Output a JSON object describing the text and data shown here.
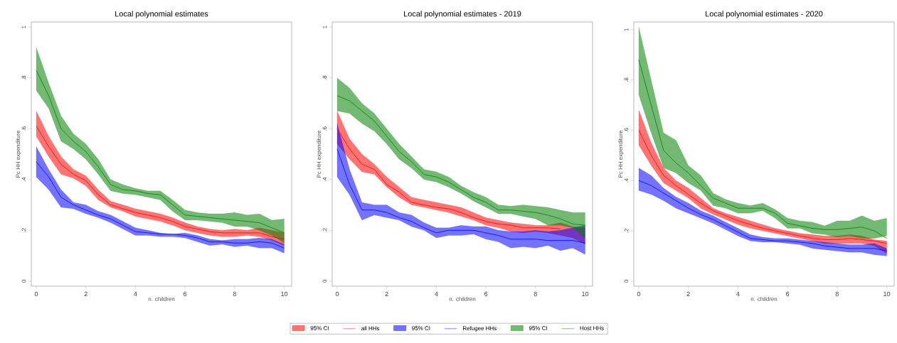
{
  "chart_data": [
    {
      "type": "line",
      "title": "Local polynomial estimates",
      "xlabel": "n. children",
      "ylabel": "Pc HH expenditure",
      "x": [
        0,
        0.5,
        1,
        1.5,
        2,
        2.5,
        3,
        3.5,
        4,
        4.5,
        5,
        5.5,
        6,
        6.5,
        7,
        7.5,
        8,
        8.5,
        9,
        9.5,
        10
      ],
      "xlim": [
        -0.2,
        10.3
      ],
      "ylim": [
        -0.02,
        1.02
      ],
      "xticks": [
        0,
        2,
        4,
        6,
        8,
        10
      ],
      "yticks": [
        0,
        {
          "value": 0.2,
          "label": ".2"
        },
        {
          "value": 0.4,
          "label": ".4"
        },
        {
          "value": 0.6,
          "label": ".6"
        },
        {
          "value": 0.8,
          "label": ".8"
        },
        1
      ],
      "legend": "bottom",
      "annotations": [
        "95% CI",
        "95% CI",
        "95% CI"
      ],
      "series": [
        {
          "name": "all HHs",
          "color": "#ff0000",
          "values": [
            0.61,
            0.53,
            0.46,
            0.42,
            0.395,
            0.34,
            0.3,
            0.285,
            0.27,
            0.26,
            0.25,
            0.235,
            0.215,
            0.205,
            0.195,
            0.19,
            0.19,
            0.19,
            0.19,
            0.175,
            0.165
          ],
          "upper": [
            0.67,
            0.57,
            0.49,
            0.44,
            0.415,
            0.36,
            0.315,
            0.3,
            0.285,
            0.275,
            0.265,
            0.25,
            0.23,
            0.215,
            0.205,
            0.2,
            0.205,
            0.2,
            0.21,
            0.2,
            0.19
          ],
          "lower": [
            0.57,
            0.49,
            0.42,
            0.405,
            0.375,
            0.32,
            0.29,
            0.275,
            0.255,
            0.245,
            0.235,
            0.22,
            0.2,
            0.19,
            0.18,
            0.175,
            0.175,
            0.18,
            0.175,
            0.16,
            0.14
          ]
        },
        {
          "name": "Refugee HHs",
          "color": "#0000ff",
          "values": [
            0.47,
            0.41,
            0.33,
            0.3,
            0.28,
            0.26,
            0.245,
            0.22,
            0.195,
            0.19,
            0.185,
            0.185,
            0.18,
            0.17,
            0.155,
            0.155,
            0.15,
            0.15,
            0.155,
            0.15,
            0.13
          ],
          "upper": [
            0.53,
            0.44,
            0.36,
            0.31,
            0.3,
            0.275,
            0.26,
            0.235,
            0.21,
            0.2,
            0.19,
            0.185,
            0.19,
            0.18,
            0.165,
            0.16,
            0.165,
            0.165,
            0.17,
            0.165,
            0.145
          ],
          "lower": [
            0.41,
            0.36,
            0.29,
            0.285,
            0.265,
            0.25,
            0.23,
            0.205,
            0.18,
            0.18,
            0.175,
            0.175,
            0.17,
            0.155,
            0.14,
            0.145,
            0.135,
            0.14,
            0.13,
            0.13,
            0.11
          ]
        },
        {
          "name": "Host HHs",
          "color": "#008000",
          "values": [
            0.83,
            0.73,
            0.6,
            0.55,
            0.51,
            0.45,
            0.38,
            0.36,
            0.355,
            0.345,
            0.34,
            0.3,
            0.26,
            0.255,
            0.25,
            0.245,
            0.24,
            0.235,
            0.23,
            0.21,
            0.19
          ],
          "upper": [
            0.92,
            0.78,
            0.65,
            0.58,
            0.54,
            0.48,
            0.4,
            0.38,
            0.365,
            0.355,
            0.355,
            0.32,
            0.28,
            0.27,
            0.265,
            0.265,
            0.27,
            0.26,
            0.265,
            0.24,
            0.245
          ],
          "lower": [
            0.75,
            0.68,
            0.55,
            0.52,
            0.48,
            0.42,
            0.355,
            0.345,
            0.34,
            0.33,
            0.32,
            0.275,
            0.24,
            0.24,
            0.235,
            0.23,
            0.215,
            0.215,
            0.2,
            0.18,
            0.15
          ]
        }
      ]
    },
    {
      "type": "line",
      "title": "Local polynomial estimates - 2019",
      "xlabel": "n. children",
      "ylabel": "Pc HH expenditure",
      "x": [
        0,
        0.5,
        1,
        1.5,
        2,
        2.5,
        3,
        3.5,
        4,
        4.5,
        5,
        5.5,
        6,
        6.5,
        7,
        7.5,
        8,
        8.5,
        9,
        9.5,
        10
      ],
      "xlim": [
        -0.2,
        10.3
      ],
      "ylim": [
        -0.02,
        1.02
      ],
      "xticks": [
        0,
        2,
        4,
        6,
        8,
        10
      ],
      "yticks": [
        0,
        {
          "value": 0.2,
          "label": ".2"
        },
        {
          "value": 0.4,
          "label": ".4"
        },
        {
          "value": 0.6,
          "label": ".6"
        },
        {
          "value": 0.8,
          "label": ".8"
        },
        1
      ],
      "series": [
        {
          "color": "#ff0000",
          "values": [
            0.6,
            0.52,
            0.46,
            0.44,
            0.38,
            0.35,
            0.31,
            0.3,
            0.29,
            0.285,
            0.27,
            0.25,
            0.235,
            0.225,
            0.22,
            0.21,
            0.21,
            0.21,
            0.205,
            null,
            null
          ],
          "upper": [
            0.67,
            0.56,
            0.5,
            0.46,
            0.41,
            0.37,
            0.33,
            0.32,
            0.31,
            0.3,
            0.29,
            0.27,
            0.25,
            0.24,
            0.23,
            0.225,
            0.22,
            0.22,
            0.23,
            0.215,
            0.21
          ],
          "lower": [
            0.54,
            0.48,
            0.43,
            0.42,
            0.37,
            0.33,
            0.3,
            0.29,
            0.28,
            0.27,
            0.255,
            0.24,
            0.22,
            0.21,
            0.195,
            0.19,
            0.195,
            0.19,
            0.18,
            0.17,
            0.145
          ]
        },
        {
          "color": "#0000ff",
          "values": [
            0.52,
            0.38,
            0.28,
            0.28,
            0.27,
            0.25,
            0.235,
            0.21,
            0.19,
            0.2,
            0.2,
            0.2,
            0.19,
            0.18,
            0.165,
            0.165,
            0.165,
            0.16,
            0.16,
            0.16,
            0.15
          ],
          "upper": [
            0.62,
            0.44,
            0.31,
            0.3,
            0.3,
            0.27,
            0.26,
            0.23,
            0.21,
            0.21,
            0.22,
            0.215,
            0.215,
            0.2,
            0.195,
            0.195,
            0.2,
            0.195,
            0.2,
            0.21,
            0.22
          ],
          "lower": [
            0.41,
            0.34,
            0.24,
            0.26,
            0.25,
            0.24,
            0.215,
            0.2,
            0.17,
            0.18,
            0.18,
            0.185,
            0.165,
            0.155,
            0.13,
            0.135,
            0.13,
            0.14,
            0.12,
            0.13,
            0.105
          ]
        },
        {
          "color": "#008000",
          "values": [
            0.73,
            0.71,
            0.67,
            0.63,
            0.57,
            0.51,
            0.47,
            0.42,
            0.41,
            0.39,
            0.36,
            0.33,
            0.31,
            0.28,
            0.28,
            0.275,
            0.27,
            0.26,
            0.245,
            0.225,
            0.22
          ],
          "upper": [
            0.8,
            0.76,
            0.7,
            0.66,
            0.6,
            0.54,
            0.49,
            0.44,
            0.43,
            0.41,
            0.375,
            0.35,
            0.33,
            0.3,
            0.295,
            0.3,
            0.295,
            0.29,
            0.28,
            0.27,
            0.27
          ],
          "lower": [
            0.67,
            0.66,
            0.62,
            0.59,
            0.54,
            0.48,
            0.445,
            0.4,
            0.39,
            0.37,
            0.345,
            0.315,
            0.29,
            0.265,
            0.265,
            0.255,
            0.245,
            0.22,
            0.22,
            0.21,
            0.17
          ]
        }
      ]
    },
    {
      "type": "line",
      "title": "Local polynomial estimates - 2020",
      "xlabel": "n. children",
      "ylabel": "Pc HH expenditure",
      "x": [
        0,
        0.5,
        1,
        1.5,
        2,
        2.5,
        3,
        3.5,
        4,
        4.5,
        5,
        5.5,
        6,
        6.5,
        7,
        7.5,
        8,
        8.5,
        9,
        9.5,
        10
      ],
      "xlim": [
        -0.2,
        10.3
      ],
      "ylim": [
        -0.02,
        1.03
      ],
      "xticks": [
        0,
        2,
        4,
        6,
        8,
        10
      ],
      "yticks": [
        0,
        {
          "value": 0.2,
          "label": ".2"
        },
        {
          "value": 0.4,
          "label": ".4"
        },
        {
          "value": 0.6,
          "label": ".6"
        },
        {
          "value": 0.8,
          "label": ".8"
        },
        1
      ],
      "series": [
        {
          "color": "#ff0000",
          "values": [
            0.6,
            0.5,
            0.42,
            0.38,
            0.345,
            0.31,
            0.28,
            0.26,
            0.24,
            0.225,
            0.21,
            0.2,
            0.19,
            0.18,
            0.17,
            0.165,
            0.165,
            0.17,
            0.165,
            0.16,
            0.15
          ],
          "upper": [
            0.68,
            0.55,
            0.45,
            0.4,
            0.37,
            0.33,
            0.29,
            0.27,
            0.255,
            0.24,
            0.225,
            0.21,
            0.2,
            0.19,
            0.185,
            0.18,
            0.18,
            0.185,
            0.18,
            0.165,
            0.16
          ],
          "lower": [
            0.54,
            0.46,
            0.39,
            0.36,
            0.33,
            0.29,
            0.265,
            0.245,
            0.225,
            0.21,
            0.2,
            0.19,
            0.18,
            0.17,
            0.16,
            0.15,
            0.15,
            0.15,
            0.15,
            0.14,
            0.11
          ]
        },
        {
          "color": "#0000ff",
          "values": [
            0.4,
            0.38,
            0.35,
            0.32,
            0.29,
            0.265,
            0.245,
            0.22,
            0.195,
            0.17,
            0.165,
            0.16,
            0.16,
            0.155,
            0.15,
            0.14,
            0.135,
            0.13,
            0.13,
            0.13,
            0.12
          ],
          "upper": [
            0.45,
            0.42,
            0.37,
            0.335,
            0.31,
            0.28,
            0.26,
            0.235,
            0.21,
            0.185,
            0.175,
            0.17,
            0.17,
            0.165,
            0.16,
            0.155,
            0.15,
            0.145,
            0.145,
            0.15,
            0.13
          ],
          "lower": [
            0.36,
            0.345,
            0.32,
            0.29,
            0.27,
            0.25,
            0.23,
            0.205,
            0.18,
            0.16,
            0.155,
            0.155,
            0.15,
            0.145,
            0.13,
            0.125,
            0.12,
            0.115,
            0.115,
            0.105,
            0.1
          ]
        },
        {
          "color": "#008000",
          "values": [
            0.88,
            0.7,
            0.52,
            0.47,
            0.43,
            0.38,
            0.33,
            0.31,
            0.29,
            0.29,
            0.29,
            0.27,
            0.23,
            0.22,
            0.21,
            0.205,
            0.205,
            0.21,
            0.215,
            0.2,
            0.17
          ],
          "upper": [
            1.01,
            0.8,
            0.59,
            0.56,
            0.46,
            0.42,
            0.35,
            0.325,
            0.31,
            0.3,
            0.31,
            0.285,
            0.25,
            0.24,
            0.235,
            0.22,
            0.24,
            0.24,
            0.26,
            0.24,
            0.25
          ],
          "lower": [
            0.74,
            0.59,
            0.45,
            0.43,
            0.39,
            0.36,
            0.3,
            0.29,
            0.27,
            0.27,
            0.28,
            0.25,
            0.21,
            0.21,
            0.19,
            0.185,
            0.175,
            0.18,
            0.17,
            0.17,
            0.18
          ]
        }
      ]
    }
  ]
}
